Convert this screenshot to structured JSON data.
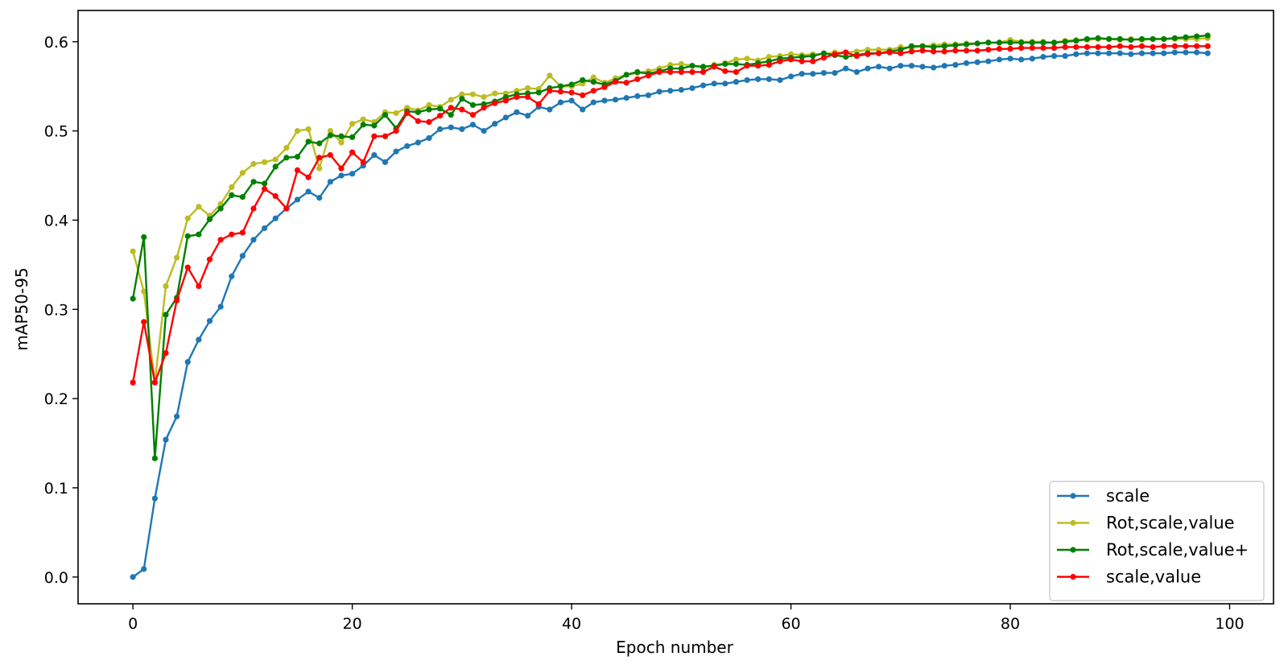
{
  "chart_data": {
    "type": "line",
    "title": "",
    "xlabel": "Epoch number",
    "ylabel": "mAP50-95",
    "xlim": [
      -5,
      104
    ],
    "ylim": [
      -0.03,
      0.635
    ],
    "xticks": [
      0,
      20,
      40,
      60,
      80,
      100
    ],
    "yticks": [
      0.0,
      0.1,
      0.2,
      0.3,
      0.4,
      0.5,
      0.6
    ],
    "xtick_labels": [
      "0",
      "20",
      "40",
      "60",
      "80",
      "100"
    ],
    "ytick_labels": [
      "0.0",
      "0.1",
      "0.2",
      "0.3",
      "0.4",
      "0.5",
      "0.6"
    ],
    "grid": false,
    "legend_position": "bottom-right",
    "series": [
      {
        "name": "scale",
        "color": "#1f77b4",
        "x": [
          0,
          1,
          2,
          3,
          4,
          5,
          6,
          7,
          8,
          9,
          10,
          11,
          12,
          13,
          14,
          15,
          16,
          17,
          18,
          19,
          20,
          21,
          22,
          23,
          24,
          25,
          26,
          27,
          28,
          29,
          30,
          31,
          32,
          33,
          34,
          35,
          36,
          37,
          38,
          39,
          40,
          41,
          42,
          43,
          44,
          45,
          46,
          47,
          48,
          49,
          50,
          51,
          52,
          53,
          54,
          55,
          56,
          57,
          58,
          59,
          60,
          61,
          62,
          63,
          64,
          65,
          66,
          67,
          68,
          69,
          70,
          71,
          72,
          73,
          74,
          75,
          76,
          77,
          78,
          79,
          80,
          81,
          82,
          83,
          84,
          85,
          86,
          87,
          88,
          89,
          90,
          91,
          92,
          93,
          94,
          95,
          96,
          97,
          98
        ],
        "values": [
          0.0,
          0.009,
          0.088,
          0.154,
          0.18,
          0.241,
          0.266,
          0.287,
          0.303,
          0.337,
          0.36,
          0.378,
          0.391,
          0.402,
          0.413,
          0.423,
          0.432,
          0.425,
          0.443,
          0.45,
          0.452,
          0.461,
          0.473,
          0.465,
          0.477,
          0.483,
          0.487,
          0.492,
          0.502,
          0.504,
          0.502,
          0.507,
          0.5,
          0.508,
          0.515,
          0.521,
          0.517,
          0.527,
          0.524,
          0.532,
          0.534,
          0.524,
          0.532,
          0.534,
          0.535,
          0.537,
          0.539,
          0.54,
          0.544,
          0.545,
          0.546,
          0.548,
          0.551,
          0.553,
          0.553,
          0.555,
          0.557,
          0.558,
          0.558,
          0.557,
          0.561,
          0.564,
          0.564,
          0.565,
          0.565,
          0.57,
          0.566,
          0.57,
          0.572,
          0.57,
          0.573,
          0.573,
          0.572,
          0.571,
          0.573,
          0.574,
          0.576,
          0.577,
          0.578,
          0.58,
          0.581,
          0.58,
          0.581,
          0.583,
          0.584,
          0.584,
          0.586,
          0.587,
          0.587,
          0.587,
          0.587,
          0.586,
          0.587,
          0.587,
          0.587,
          0.588,
          0.588,
          0.588,
          0.587
        ]
      },
      {
        "name": "Rot,scale,value",
        "color": "#bcbd22",
        "x": [
          0,
          1,
          2,
          3,
          4,
          5,
          6,
          7,
          8,
          9,
          10,
          11,
          12,
          13,
          14,
          15,
          16,
          17,
          18,
          19,
          20,
          21,
          22,
          23,
          24,
          25,
          26,
          27,
          28,
          29,
          30,
          31,
          32,
          33,
          34,
          35,
          36,
          37,
          38,
          39,
          40,
          41,
          42,
          43,
          44,
          45,
          46,
          47,
          48,
          49,
          50,
          51,
          52,
          53,
          54,
          55,
          56,
          57,
          58,
          59,
          60,
          61,
          62,
          63,
          64,
          65,
          66,
          67,
          68,
          69,
          70,
          71,
          72,
          73,
          74,
          75,
          76,
          77,
          78,
          79,
          80,
          81,
          82,
          83,
          84,
          85,
          86,
          87,
          88,
          89,
          90,
          91,
          92,
          93,
          94,
          95,
          96,
          97,
          98
        ],
        "values": [
          0.365,
          0.32,
          0.218,
          0.326,
          0.358,
          0.402,
          0.415,
          0.405,
          0.418,
          0.437,
          0.453,
          0.463,
          0.465,
          0.468,
          0.481,
          0.5,
          0.502,
          0.458,
          0.5,
          0.487,
          0.508,
          0.513,
          0.51,
          0.521,
          0.52,
          0.526,
          0.523,
          0.529,
          0.527,
          0.535,
          0.541,
          0.541,
          0.538,
          0.542,
          0.542,
          0.545,
          0.548,
          0.547,
          0.562,
          0.55,
          0.55,
          0.553,
          0.56,
          0.554,
          0.559,
          0.563,
          0.565,
          0.567,
          0.57,
          0.574,
          0.575,
          0.573,
          0.571,
          0.574,
          0.576,
          0.58,
          0.581,
          0.579,
          0.583,
          0.584,
          0.586,
          0.585,
          0.586,
          0.586,
          0.588,
          0.588,
          0.589,
          0.591,
          0.591,
          0.591,
          0.594,
          0.593,
          0.595,
          0.596,
          0.597,
          0.597,
          0.598,
          0.598,
          0.599,
          0.599,
          0.602,
          0.6,
          0.6,
          0.6,
          0.599,
          0.601,
          0.602,
          0.602,
          0.603,
          0.603,
          0.602,
          0.603,
          0.602,
          0.603,
          0.603,
          0.603,
          0.603,
          0.603,
          0.604
        ]
      },
      {
        "name": "Rot,scale,value+",
        "color": "#008000",
        "x": [
          0,
          1,
          2,
          3,
          4,
          5,
          6,
          7,
          8,
          9,
          10,
          11,
          12,
          13,
          14,
          15,
          16,
          17,
          18,
          19,
          20,
          21,
          22,
          23,
          24,
          25,
          26,
          27,
          28,
          29,
          30,
          31,
          32,
          33,
          34,
          35,
          36,
          37,
          38,
          39,
          40,
          41,
          42,
          43,
          44,
          45,
          46,
          47,
          48,
          49,
          50,
          51,
          52,
          53,
          54,
          55,
          56,
          57,
          58,
          59,
          60,
          61,
          62,
          63,
          64,
          65,
          66,
          67,
          68,
          69,
          70,
          71,
          72,
          73,
          74,
          75,
          76,
          77,
          78,
          79,
          80,
          81,
          82,
          83,
          84,
          85,
          86,
          87,
          88,
          89,
          90,
          91,
          92,
          93,
          94,
          95,
          96,
          97,
          98
        ],
        "values": [
          0.312,
          0.381,
          0.133,
          0.294,
          0.313,
          0.382,
          0.384,
          0.401,
          0.413,
          0.428,
          0.426,
          0.443,
          0.441,
          0.46,
          0.47,
          0.471,
          0.488,
          0.486,
          0.495,
          0.494,
          0.493,
          0.507,
          0.506,
          0.518,
          0.503,
          0.522,
          0.521,
          0.524,
          0.525,
          0.518,
          0.536,
          0.529,
          0.53,
          0.533,
          0.538,
          0.541,
          0.542,
          0.543,
          0.548,
          0.55,
          0.552,
          0.557,
          0.555,
          0.552,
          0.556,
          0.563,
          0.566,
          0.564,
          0.567,
          0.57,
          0.57,
          0.573,
          0.572,
          0.573,
          0.575,
          0.575,
          0.574,
          0.576,
          0.578,
          0.581,
          0.582,
          0.583,
          0.584,
          0.587,
          0.585,
          0.583,
          0.585,
          0.587,
          0.587,
          0.589,
          0.591,
          0.595,
          0.595,
          0.594,
          0.595,
          0.596,
          0.597,
          0.598,
          0.599,
          0.599,
          0.599,
          0.599,
          0.599,
          0.599,
          0.599,
          0.6,
          0.601,
          0.603,
          0.604,
          0.603,
          0.603,
          0.602,
          0.603,
          0.603,
          0.603,
          0.604,
          0.605,
          0.606,
          0.607
        ]
      },
      {
        "name": "scale,value",
        "color": "#ff0000",
        "x": [
          0,
          1,
          2,
          3,
          4,
          5,
          6,
          7,
          8,
          9,
          10,
          11,
          12,
          13,
          14,
          15,
          16,
          17,
          18,
          19,
          20,
          21,
          22,
          23,
          24,
          25,
          26,
          27,
          28,
          29,
          30,
          31,
          32,
          33,
          34,
          35,
          36,
          37,
          38,
          39,
          40,
          41,
          42,
          43,
          44,
          45,
          46,
          47,
          48,
          49,
          50,
          51,
          52,
          53,
          54,
          55,
          56,
          57,
          58,
          59,
          60,
          61,
          62,
          63,
          64,
          65,
          66,
          67,
          68,
          69,
          70,
          71,
          72,
          73,
          74,
          75,
          76,
          77,
          78,
          79,
          80,
          81,
          82,
          83,
          84,
          85,
          86,
          87,
          88,
          89,
          90,
          91,
          92,
          93,
          94,
          95,
          96,
          97,
          98
        ],
        "values": [
          0.218,
          0.286,
          0.218,
          0.251,
          0.31,
          0.347,
          0.326,
          0.356,
          0.378,
          0.384,
          0.386,
          0.413,
          0.435,
          0.427,
          0.413,
          0.456,
          0.448,
          0.47,
          0.473,
          0.458,
          0.476,
          0.465,
          0.494,
          0.494,
          0.5,
          0.52,
          0.511,
          0.51,
          0.517,
          0.526,
          0.524,
          0.518,
          0.526,
          0.531,
          0.534,
          0.538,
          0.538,
          0.53,
          0.545,
          0.544,
          0.543,
          0.54,
          0.545,
          0.549,
          0.555,
          0.554,
          0.558,
          0.562,
          0.566,
          0.566,
          0.566,
          0.566,
          0.566,
          0.572,
          0.567,
          0.566,
          0.573,
          0.573,
          0.574,
          0.578,
          0.58,
          0.578,
          0.578,
          0.582,
          0.586,
          0.588,
          0.584,
          0.586,
          0.587,
          0.588,
          0.587,
          0.589,
          0.59,
          0.589,
          0.589,
          0.59,
          0.59,
          0.59,
          0.591,
          0.592,
          0.592,
          0.593,
          0.593,
          0.593,
          0.593,
          0.594,
          0.594,
          0.594,
          0.594,
          0.594,
          0.595,
          0.594,
          0.595,
          0.594,
          0.595,
          0.595,
          0.595,
          0.595,
          0.595
        ]
      }
    ]
  }
}
